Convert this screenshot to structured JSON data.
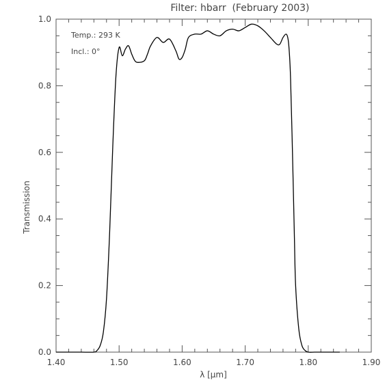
{
  "chart_data": {
    "type": "line",
    "title": "Filter: hbarr",
    "subtitle": "(February 2003)",
    "xlabel": "λ [μm]",
    "ylabel": "Transmission",
    "xlim": [
      1.4,
      1.9
    ],
    "ylim": [
      0.0,
      1.0
    ],
    "xticks": [
      "1.40",
      "1.50",
      "1.60",
      "1.70",
      "1.80",
      "1.90"
    ],
    "yticks": [
      "0.0",
      "0.2",
      "0.4",
      "0.6",
      "0.8",
      "1.0"
    ],
    "annotations": [
      "Temp.: 293 K",
      "Incl.: 0°"
    ],
    "series": [
      {
        "x": [
          1.4,
          1.44,
          1.46,
          1.465,
          1.47,
          1.475,
          1.48,
          1.485,
          1.49,
          1.495,
          1.5,
          1.505,
          1.51,
          1.515,
          1.52,
          1.525,
          1.53,
          1.54,
          1.545,
          1.55,
          1.56,
          1.57,
          1.58,
          1.59,
          1.595,
          1.6,
          1.605,
          1.61,
          1.62,
          1.63,
          1.64,
          1.65,
          1.66,
          1.67,
          1.68,
          1.69,
          1.7,
          1.71,
          1.72,
          1.73,
          1.74,
          1.75,
          1.755,
          1.76,
          1.765,
          1.768,
          1.77,
          1.772,
          1.775,
          1.778,
          1.78,
          1.785,
          1.79,
          1.795,
          1.8,
          1.81,
          1.82,
          1.85
        ],
        "values": [
          0.0,
          0.0,
          0.0,
          0.005,
          0.02,
          0.06,
          0.16,
          0.36,
          0.62,
          0.83,
          0.915,
          0.89,
          0.91,
          0.92,
          0.895,
          0.875,
          0.87,
          0.875,
          0.895,
          0.92,
          0.945,
          0.93,
          0.94,
          0.905,
          0.88,
          0.885,
          0.91,
          0.945,
          0.955,
          0.955,
          0.965,
          0.955,
          0.95,
          0.965,
          0.97,
          0.965,
          0.975,
          0.985,
          0.98,
          0.965,
          0.945,
          0.925,
          0.925,
          0.945,
          0.955,
          0.94,
          0.9,
          0.82,
          0.6,
          0.35,
          0.2,
          0.07,
          0.02,
          0.005,
          0.0,
          0.0,
          0.0,
          0.0
        ]
      }
    ],
    "grid": false,
    "legend": "none"
  }
}
